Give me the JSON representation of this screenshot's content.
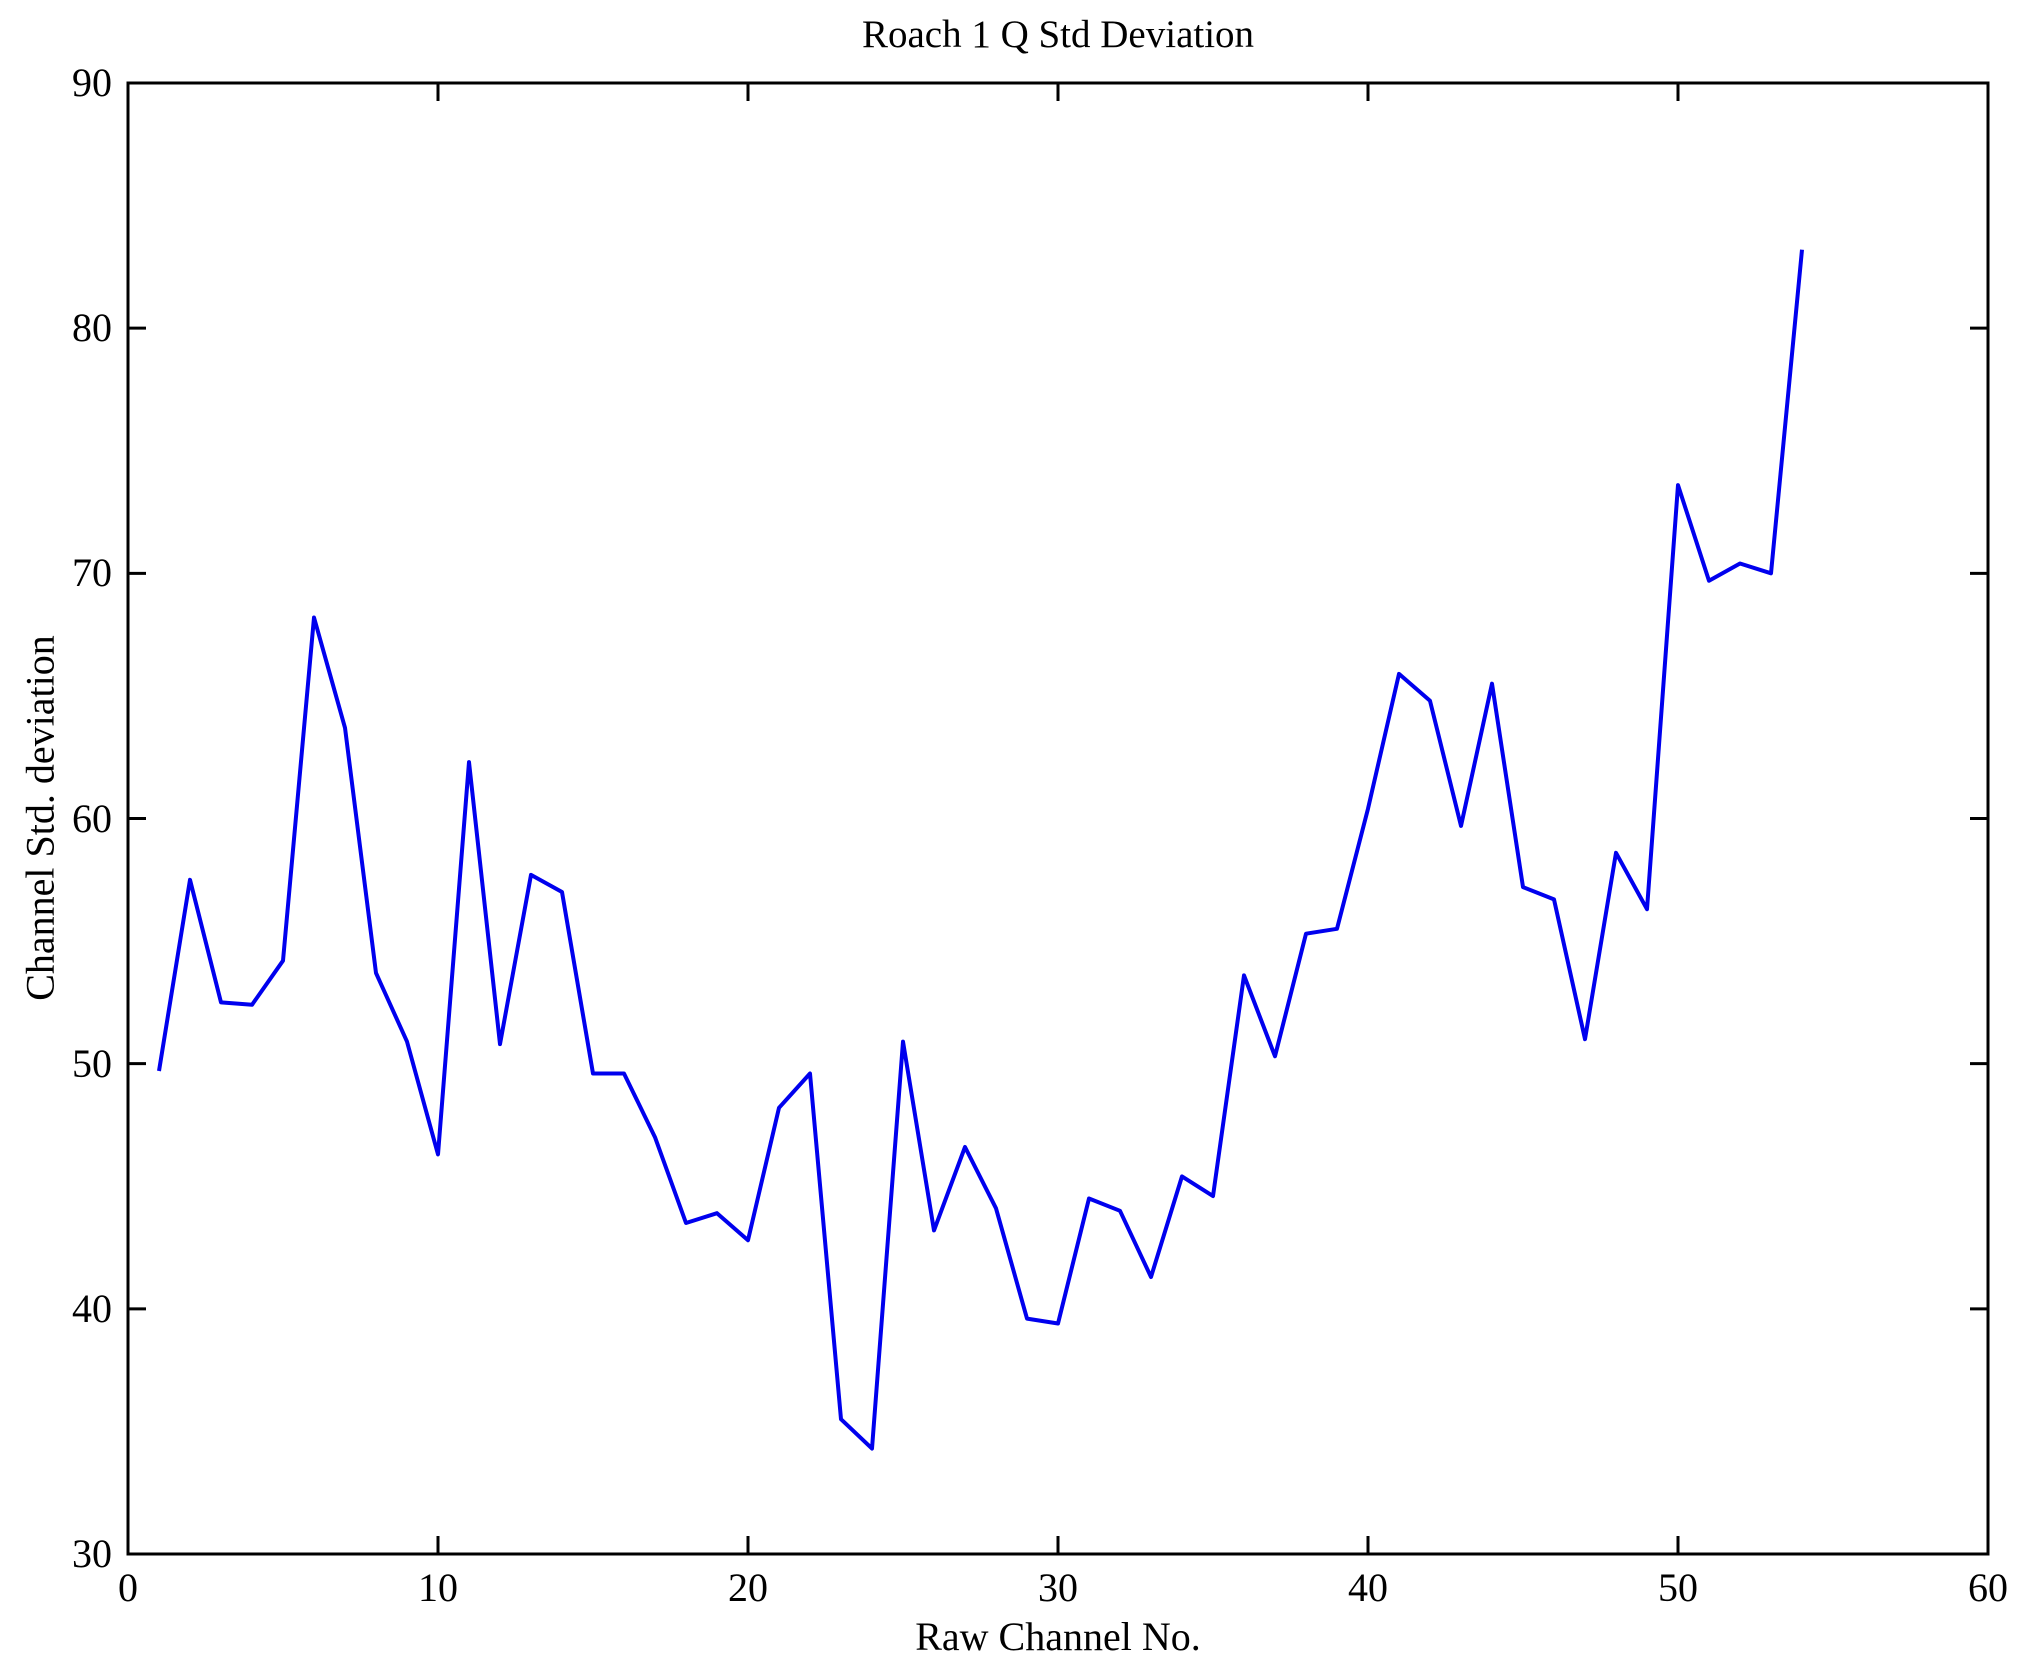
{
  "chart_data": {
    "type": "line",
    "title": "Roach 1 Q Std Deviation",
    "xlabel": "Raw Channel No.",
    "ylabel": "Channel Std. deviation",
    "xlim": [
      0,
      60
    ],
    "ylim": [
      30,
      90
    ],
    "x_ticks": [
      0,
      10,
      20,
      30,
      40,
      50,
      60
    ],
    "y_ticks": [
      30,
      40,
      50,
      60,
      70,
      80,
      90
    ],
    "grid": false,
    "box": true,
    "tick_direction": "in",
    "background": "#ffffff",
    "axis_color": "#000000",
    "series": [
      {
        "name": "Channel Std deviation",
        "color": "#0000ee",
        "x": [
          1,
          2,
          3,
          4,
          5,
          6,
          7,
          8,
          9,
          10,
          11,
          12,
          13,
          14,
          15,
          16,
          17,
          18,
          19,
          20,
          21,
          22,
          23,
          24,
          25,
          26,
          27,
          28,
          29,
          30,
          31,
          32,
          33,
          34,
          35,
          36,
          37,
          38,
          39,
          40,
          41,
          42,
          43,
          44,
          45,
          46,
          47,
          48,
          49,
          50,
          51,
          52,
          53,
          54
        ],
        "y": [
          49.7,
          57.5,
          52.5,
          52.4,
          54.2,
          68.2,
          63.7,
          53.7,
          50.9,
          46.3,
          62.3,
          50.8,
          57.7,
          57.0,
          49.6,
          49.6,
          47.0,
          43.5,
          43.9,
          42.8,
          48.2,
          49.6,
          35.5,
          34.3,
          50.9,
          43.2,
          46.6,
          44.1,
          39.6,
          39.4,
          44.5,
          44.0,
          41.3,
          45.4,
          44.6,
          53.6,
          50.3,
          55.3,
          55.5,
          60.4,
          65.9,
          64.8,
          59.7,
          65.5,
          57.2,
          56.7,
          51.0,
          58.6,
          56.3,
          73.6,
          69.7,
          70.4,
          70.0,
          83.2
        ]
      }
    ]
  }
}
